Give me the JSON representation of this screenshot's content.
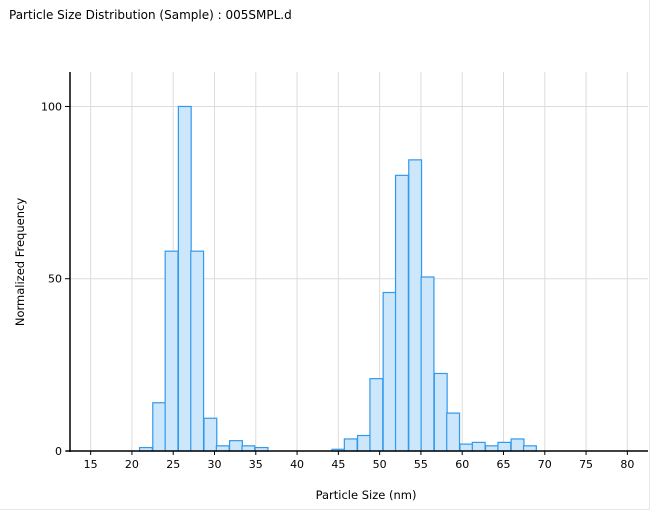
{
  "window": {
    "title": "Particle Size Distribution (Sample) : 005SMPL.d"
  },
  "colors": {
    "bar_fill": "#cce6fb",
    "bar_stroke": "#3399ea",
    "grid": "#dcdcdc",
    "axis": "#000000"
  },
  "chart_data": {
    "type": "bar",
    "title": "Particle Size Distribution (Sample) : 005SMPL.d",
    "xlabel": "Particle Size (nm)",
    "ylabel": "Normalized Frequency",
    "xlim": [
      12.5,
      82.5
    ],
    "ylim": [
      0,
      110
    ],
    "grid": true,
    "x_ticks": [
      "15",
      "20",
      "25",
      "30",
      "35",
      "40",
      "45",
      "50",
      "55",
      "60",
      "65",
      "70",
      "75",
      "80"
    ],
    "x_tick_values": [
      15,
      20,
      25,
      30,
      35,
      40,
      45,
      50,
      55,
      60,
      65,
      70,
      75,
      80
    ],
    "y_ticks": [
      "0",
      "50",
      "100"
    ],
    "y_tick_values": [
      0,
      50,
      100
    ],
    "bin_width": 1.55,
    "bins": [
      {
        "x": 21.7,
        "y": 1
      },
      {
        "x": 23.3,
        "y": 14
      },
      {
        "x": 24.8,
        "y": 58
      },
      {
        "x": 26.4,
        "y": 100
      },
      {
        "x": 27.9,
        "y": 58
      },
      {
        "x": 29.5,
        "y": 9.5
      },
      {
        "x": 31.0,
        "y": 1.5
      },
      {
        "x": 32.6,
        "y": 3
      },
      {
        "x": 34.1,
        "y": 1.5
      },
      {
        "x": 35.7,
        "y": 1
      },
      {
        "x": 45.0,
        "y": 0.5
      },
      {
        "x": 46.5,
        "y": 3.5
      },
      {
        "x": 48.1,
        "y": 4.5
      },
      {
        "x": 49.6,
        "y": 21
      },
      {
        "x": 51.2,
        "y": 46
      },
      {
        "x": 52.7,
        "y": 80
      },
      {
        "x": 54.3,
        "y": 84.5
      },
      {
        "x": 55.8,
        "y": 50.5
      },
      {
        "x": 57.4,
        "y": 22.5
      },
      {
        "x": 58.9,
        "y": 11
      },
      {
        "x": 60.5,
        "y": 2
      },
      {
        "x": 62.0,
        "y": 2.5
      },
      {
        "x": 63.6,
        "y": 1.5
      },
      {
        "x": 65.1,
        "y": 2.5
      },
      {
        "x": 66.7,
        "y": 3.5
      },
      {
        "x": 68.2,
        "y": 1.5
      }
    ]
  }
}
